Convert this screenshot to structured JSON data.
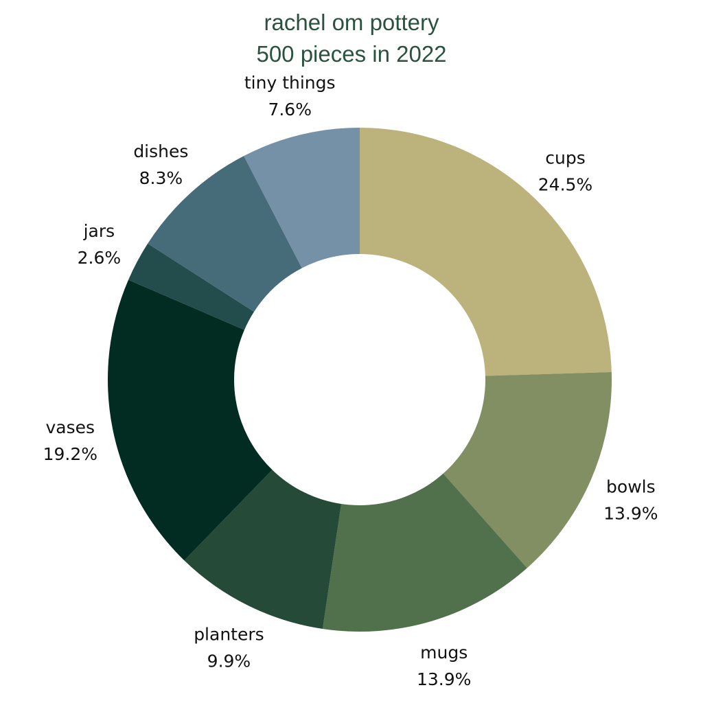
{
  "chart_data": {
    "type": "pie",
    "donut": true,
    "title": "rachel om pottery",
    "subtitle": "500 pieces in 2022",
    "slices": [
      {
        "label": "cups",
        "percent_label": "24.5%",
        "value": 24.5,
        "color": "#bcb27b"
      },
      {
        "label": "bowls",
        "percent_label": "13.9%",
        "value": 13.9,
        "color": "#828f62"
      },
      {
        "label": "mugs",
        "percent_label": "13.9%",
        "value": 13.9,
        "color": "#51704c"
      },
      {
        "label": "planters",
        "percent_label": "9.9%",
        "value": 9.9,
        "color": "#264a38"
      },
      {
        "label": "vases",
        "percent_label": "19.2%",
        "value": 19.2,
        "color": "#022b22"
      },
      {
        "label": "jars",
        "percent_label": "2.6%",
        "value": 2.6,
        "color": "#224d4c"
      },
      {
        "label": "dishes",
        "percent_label": "8.3%",
        "value": 8.3,
        "color": "#476c79"
      },
      {
        "label": "tiny things",
        "percent_label": "7.6%",
        "value": 7.6,
        "color": "#7591a8"
      }
    ],
    "legend": "none",
    "labels_position": "outside"
  }
}
